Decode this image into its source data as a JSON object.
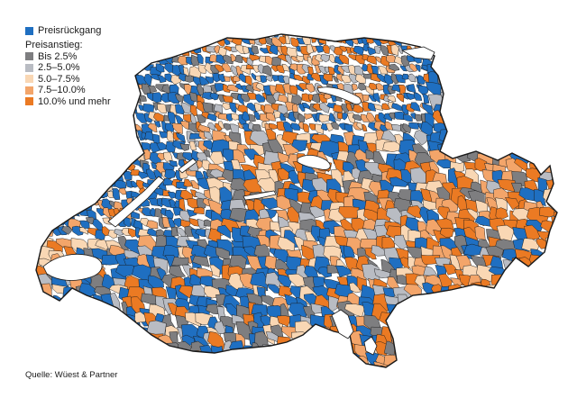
{
  "legend": {
    "decline": {
      "label": "Preisrückgang",
      "color": "#1f6fc1"
    },
    "increase_heading": "Preisanstieg:",
    "classes": [
      {
        "label": "Bis 2.5%",
        "color": "#7e7e80"
      },
      {
        "label": "2.5–5.0%",
        "color": "#b9bcc3"
      },
      {
        "label": "5.0–7.5%",
        "color": "#f9d7b4"
      },
      {
        "label": "7.5–10.0%",
        "color": "#f3a56a"
      },
      {
        "label": "10.0% und mehr",
        "color": "#eb7a23"
      }
    ]
  },
  "source": "Quelle: Wüest & Partner",
  "map": {
    "lake_color": "#ffffff",
    "border_color": "#1a1a1a"
  }
}
